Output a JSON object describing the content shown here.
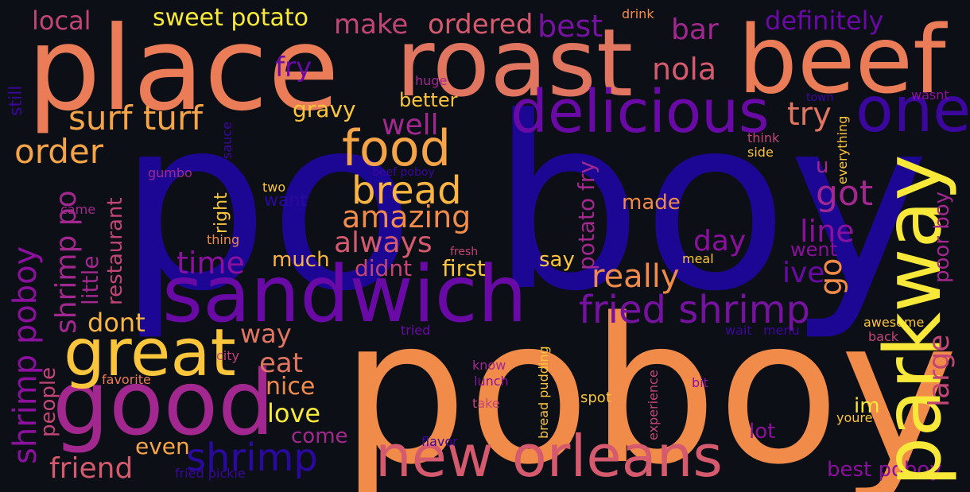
{
  "words": {
    "po_boy": "po boy",
    "poboy": "poboy",
    "place": "place",
    "roast": "roast",
    "beef": "beef",
    "sandwich": "sandwich",
    "good": "good",
    "great": "great",
    "new_orleans": "new orleans",
    "parkway": "parkway",
    "delicious": "delicious",
    "one": "one",
    "food": "food",
    "bread": "bread",
    "fried_shrimp": "fried shrimp",
    "shrimp": "shrimp",
    "surf_turf": "surf turf",
    "order": "order",
    "amazing": "amazing",
    "always": "always",
    "time": "time",
    "well": "well",
    "really": "really",
    "got": "got",
    "line": "line",
    "try": "try",
    "local": "local",
    "sweet_potato": "sweet potato",
    "make": "make",
    "ordered": "ordered",
    "best": "best",
    "bar": "bar",
    "definitely": "definitely",
    "nola": "nola",
    "fry": "fry",
    "gravy": "gravy",
    "better": "better",
    "dont": "dont",
    "way": "way",
    "eat": "eat",
    "nice": "nice",
    "love": "love",
    "come": "come",
    "even": "even",
    "friend": "friend",
    "much": "much",
    "didnt": "didnt",
    "first": "first",
    "say": "say",
    "day": "day",
    "made": "made",
    "went": "went",
    "ive": "ive",
    "u": "u",
    "lot": "lot",
    "im": "im",
    "best_poboy": "best poboy",
    "two": "two",
    "want": "want",
    "gumbo": "gumbo",
    "beef_poboy": "beef poboy",
    "huge": "huge",
    "drink": "drink",
    "town": "town",
    "wasnt": "wasnt",
    "think": "think",
    "side": "side",
    "came": "came",
    "thing": "thing",
    "fresh": "fresh",
    "meal": "meal",
    "tried": "tried",
    "city": "city",
    "favorite": "favorite",
    "know": "know",
    "lunch": "lunch",
    "take": "take",
    "spot": "spot",
    "bit": "bit",
    "flavor": "flavor",
    "fried_pickle": "fried pickle",
    "wait": "wait",
    "menu": "menu",
    "awesome": "awesome",
    "back": "back",
    "youre": "youre",
    "shrimp_poboy": "shrimp poboy",
    "shrimp_po": "shrimp po",
    "little": "little",
    "restaurant": "restaurant",
    "people": "people",
    "still": "still",
    "sauce": "sauce",
    "right": "right",
    "potato_fry": "potato fry",
    "go": "go",
    "large": "large",
    "poor_boy": "poor boy",
    "everything": "everything",
    "bread_pudding": "bread pudding",
    "experience": "experience"
  },
  "colors": {
    "background": "#0d0f17",
    "deep_blue": "#1c0795",
    "violet": "#6a0aa6",
    "purple": "#8b109d",
    "magenta": "#a2288f",
    "pink": "#c24674",
    "salmon": "#e07560",
    "orange": "#f18b4a",
    "amber": "#fbb540",
    "yellow": "#f7e83a"
  }
}
